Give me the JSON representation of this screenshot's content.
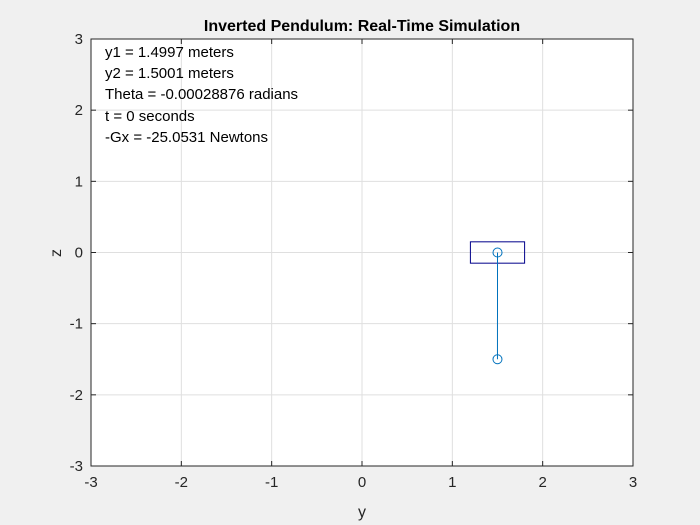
{
  "chart_data": {
    "type": "line",
    "title": "Inverted Pendulum: Real-Time Simulation",
    "xlabel": "y",
    "ylabel": "z",
    "xlim": [
      -3,
      3
    ],
    "ylim": [
      -3,
      3
    ],
    "xticks": [
      "-3",
      "-2",
      "-1",
      "0",
      "1",
      "2",
      "3"
    ],
    "yticks": [
      "-3",
      "-2",
      "-1",
      "0",
      "1",
      "2",
      "3"
    ],
    "grid": true,
    "annotations": [
      "y1 = 1.4997 meters",
      "y2 = 1.5001 meters",
      "Theta = -0.00028876 radians",
      "t = 0 seconds",
      "-Gx = -25.0531 Newtons"
    ],
    "cart": {
      "x_range": [
        1.2,
        1.8
      ],
      "z_range": [
        -0.15,
        0.15
      ]
    },
    "pendulum": {
      "x": [
        1.5001,
        1.4997
      ],
      "z": [
        0.0,
        -1.5
      ]
    },
    "colors": {
      "pendulum": "#0072bd",
      "cart": "#00008b",
      "axes": "#262626",
      "grid": "#dfdfdf",
      "background": "#f0f0f0"
    }
  }
}
